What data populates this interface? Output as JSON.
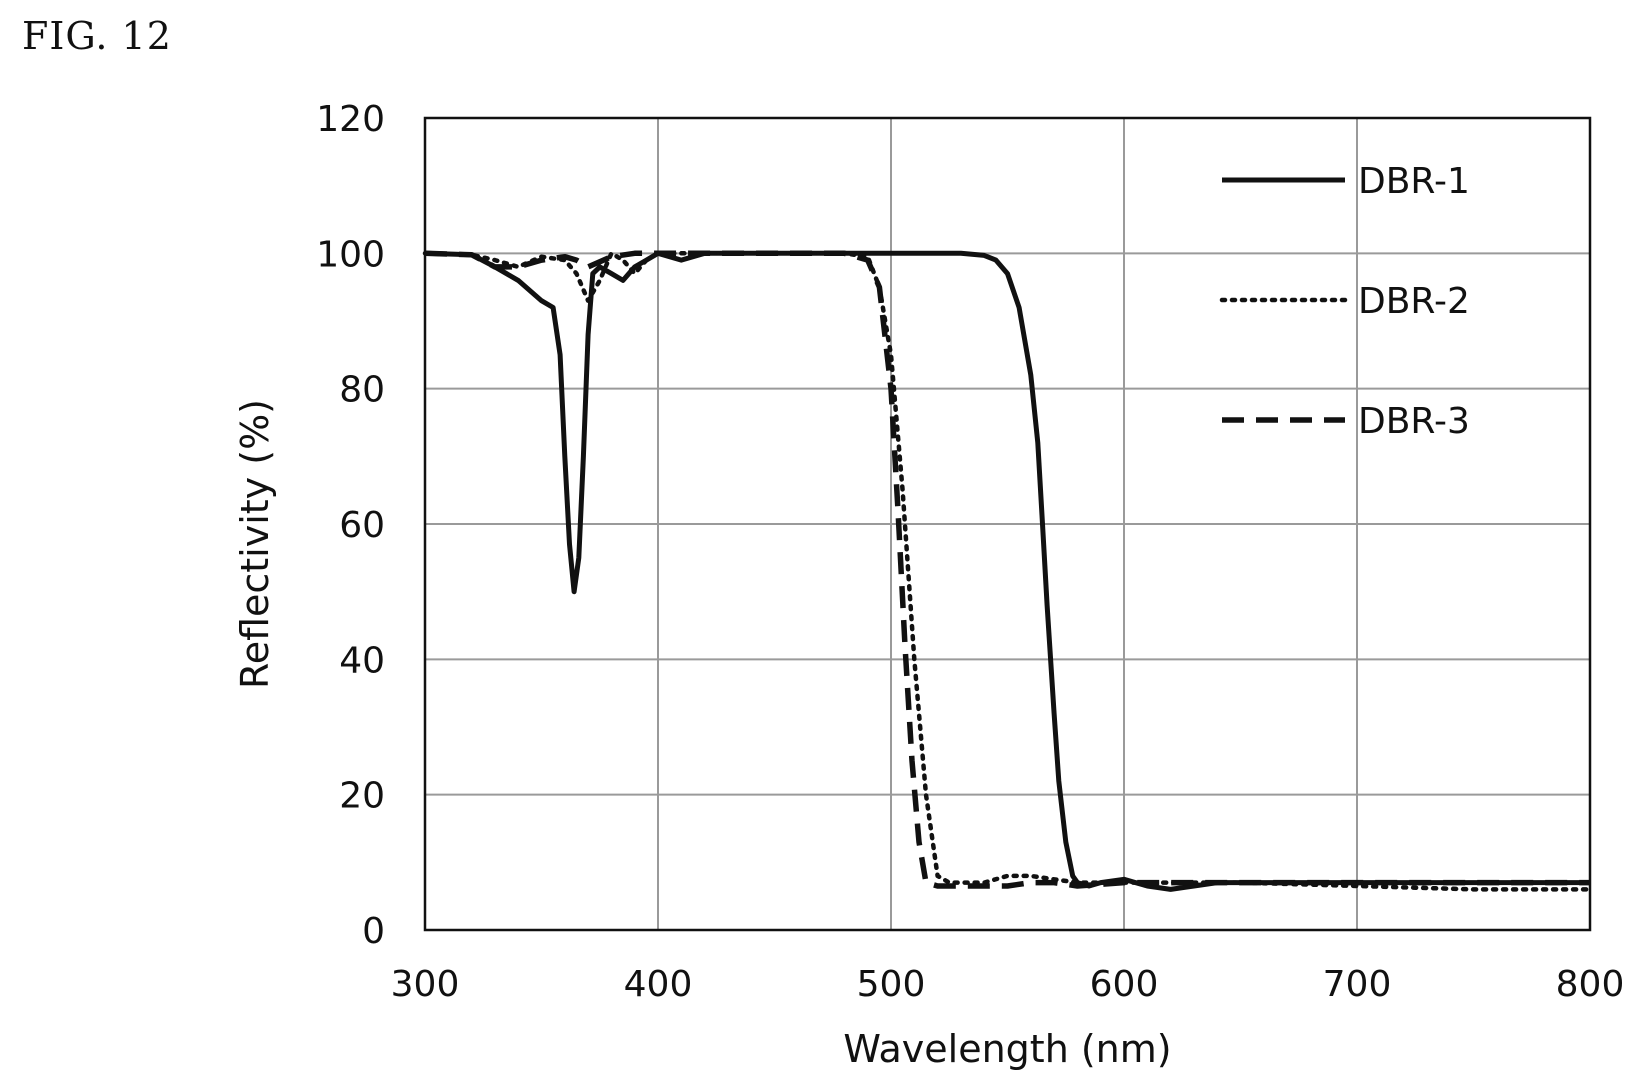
{
  "figure_label": "FIG. 12",
  "chart_data": {
    "type": "line",
    "xlabel": "Wavelength (nm)",
    "ylabel": "Reflectivity (%)",
    "xlim": [
      300,
      800
    ],
    "ylim": [
      0,
      120
    ],
    "xticks": [
      300,
      400,
      500,
      600,
      700,
      800
    ],
    "yticks": [
      0,
      20,
      40,
      60,
      80,
      100,
      120
    ],
    "grid": true,
    "legend_position": "top-right",
    "series": [
      {
        "name": "DBR-1",
        "style": "solid",
        "x": [
          300,
          320,
          330,
          340,
          350,
          355,
          358,
          360,
          362,
          364,
          366,
          368,
          370,
          372,
          375,
          380,
          385,
          390,
          395,
          400,
          410,
          420,
          450,
          480,
          500,
          520,
          530,
          540,
          545,
          550,
          555,
          560,
          563,
          565,
          567,
          570,
          572,
          575,
          578,
          580,
          585,
          590,
          600,
          610,
          620,
          630,
          640,
          650,
          700,
          750,
          800
        ],
        "y": [
          100,
          99.8,
          98,
          96,
          93,
          92,
          85,
          70,
          57,
          50,
          55,
          70,
          88,
          97,
          98,
          97,
          96,
          98,
          99,
          100,
          99,
          100,
          100,
          100,
          100,
          100,
          100,
          99.7,
          99,
          97,
          92,
          82,
          72,
          60,
          48,
          32,
          22,
          13,
          8,
          7,
          6.5,
          7,
          7.5,
          6.5,
          6,
          6.5,
          7,
          7,
          7,
          7,
          7
        ]
      },
      {
        "name": "DBR-2",
        "style": "dotted",
        "x": [
          300,
          320,
          330,
          340,
          350,
          360,
          365,
          370,
          375,
          380,
          385,
          390,
          395,
          400,
          450,
          480,
          490,
          495,
          500,
          505,
          510,
          515,
          520,
          525,
          530,
          540,
          550,
          560,
          570,
          580,
          600,
          650,
          700,
          750,
          800
        ],
        "y": [
          100,
          99.8,
          99,
          98,
          99.5,
          99,
          97,
          93,
          96,
          100,
          99,
          97,
          99,
          100,
          100,
          100,
          99.5,
          95,
          85,
          65,
          40,
          20,
          8,
          7,
          7,
          7,
          8,
          8,
          7.5,
          7,
          7,
          7,
          6.5,
          6,
          6
        ]
      },
      {
        "name": "DBR-3",
        "style": "dashed",
        "x": [
          300,
          320,
          330,
          340,
          350,
          360,
          365,
          370,
          380,
          390,
          400,
          450,
          480,
          490,
          495,
          500,
          503,
          506,
          509,
          512,
          515,
          520,
          530,
          540,
          550,
          560,
          570,
          580,
          600,
          650,
          700,
          750,
          800
        ],
        "y": [
          100,
          99.8,
          98,
          98,
          99,
          99.5,
          99,
          98,
          99.5,
          100,
          100,
          100,
          100,
          99,
          95,
          80,
          62,
          42,
          25,
          13,
          7,
          6.5,
          6.5,
          6.5,
          6.5,
          7,
          7,
          6.5,
          7,
          7,
          7,
          7,
          7
        ]
      }
    ]
  }
}
